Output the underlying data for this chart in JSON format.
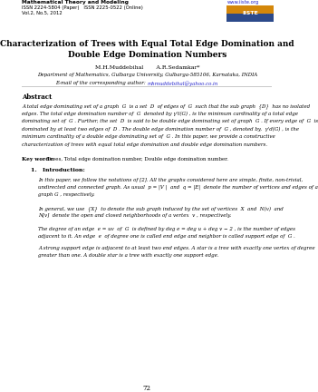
{
  "header_left": [
    "Mathematical Theory and Modeling",
    "ISSN 2224-5804 (Paper)   ISSN 2225-0522 (Online)",
    "Vol.2, No.5, 2012"
  ],
  "header_right_url": "www.iiste.org",
  "title_line1": "Characterization of Trees with Equal Total Edge Domination and",
  "title_line2": "Double Edge Domination Numbers",
  "authors": "M.H.Muddebihal       A.R.Sedamkar*",
  "affiliation": "Department of Mathematics, Gulbarga University, Gulbarga-585106, Karnataka, INDIA",
  "email_label": "E-mail of the corresponding author: ",
  "email": "mhmuddebihal@yahoo.co.in",
  "abstract_title": "Abstract",
  "abstract_lines": [
    "A total edge dominating set of a graph  G  is a set  D  of edges of  G  such that the sub graph  {D}  has no isolated",
    "edges. The total edge domination number of  G  denoted by γ't(G) , is the minimum cardinality of a total edge",
    "dominating set of  G . Further, the set  D  is said to be double edge dominating set of graph  G . If every edge of  G  is",
    "dominated by at least two edges of  D . The double edge domination number of  G , denoted by,  γ'd(G) , is the",
    "minimum cardinality of a double edge dominating set of  G . In this paper, we provide a constructive",
    "characterization of trees with equal total edge domination and double edge domination numbers."
  ],
  "keywords_bold": "Key words:",
  "keywords_text": " Trees, Total edge domination number, Double edge domination number.",
  "section_title": "1.   Introduction:",
  "para1_lines": [
    "In this paper, we follow the notations of [2]. All the graphs considered here are simple, finite, non-trivial,",
    "undirected and connected graph. As usual  p = |V |  and  q = |E|  denote the number of vertices and edges of a",
    "graph G , respectively."
  ],
  "para2_lines": [
    "In general, we use  {X}  to denote the sub graph induced by the set of vertices  X  and  N(v)  and",
    "N[v]  denote the open and closed neighborhoods of a vertex  v , respectively."
  ],
  "para3_lines": [
    "The degree of an edge  e = uv  of  G  is defined by deg e = deg u + deg v − 2 , is the number of edges",
    "adjacent to it. An edge  e  of degree one is called end edge and neighbor is called support edge of  G ."
  ],
  "para4_lines": [
    "A strong support edge is adjacent to at least two end edges. A star is a tree with exactly one vertex of degree",
    "greater than one. A double star is a tree with exactly one support edge."
  ],
  "page_number": "72",
  "bg_color": "#ffffff"
}
